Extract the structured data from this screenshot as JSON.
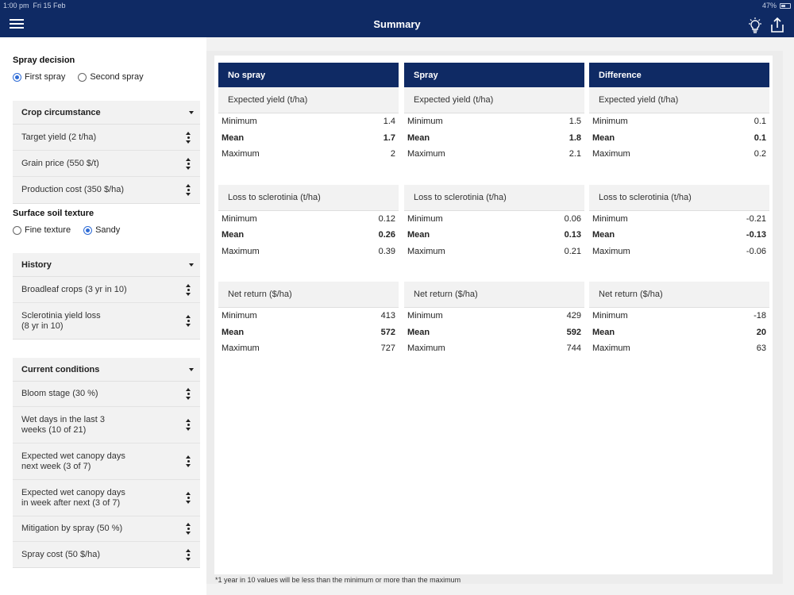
{
  "status_bar": {
    "time": "1:00 pm",
    "date": "Fri 15 Feb",
    "battery": "47%"
  },
  "header": {
    "title": "Summary"
  },
  "icons": {
    "menu": "hamburger-menu-icon",
    "tip": "lightbulb-icon",
    "share": "share-icon"
  },
  "colors": {
    "brand": "#0f2a64",
    "accent": "#2f6cd6"
  },
  "spray_decision": {
    "title": "Spray decision",
    "options": [
      "First spray",
      "Second spray"
    ],
    "selected": "First spray"
  },
  "crop": {
    "title": "Crop circumstance",
    "items": [
      "Target yield (2 t/ha)",
      "Grain price (550 $/t)",
      "Production cost (350 $/ha)"
    ]
  },
  "soil": {
    "title": "Surface soil texture",
    "options": [
      "Fine texture",
      "Sandy"
    ],
    "selected": "Sandy"
  },
  "history": {
    "title": "History",
    "items": [
      "Broadleaf crops (3 yr in 10)",
      "Sclerotinia yield loss\n(8 yr in 10)"
    ]
  },
  "conditions": {
    "title": "Current conditions",
    "items": [
      "Bloom stage (30 %)",
      "Wet days in the last 3\nweeks (10 of 21)",
      "Expected wet canopy days\nnext week (3 of 7)",
      "Expected wet canopy days\nin week after next (3 of 7)",
      "Mitigation by spray (50 %)",
      "Spray cost (50 $/ha)"
    ]
  },
  "summary": {
    "row_labels": [
      "Minimum",
      "Mean",
      "Maximum"
    ],
    "columns": [
      {
        "title": "No spray",
        "blocks": [
          {
            "title": "Expected yield (t/ha)",
            "values": [
              "1.4",
              "1.7",
              "2"
            ]
          },
          {
            "title": "Loss to sclerotinia (t/ha)",
            "values": [
              "0.12",
              "0.26",
              "0.39"
            ]
          },
          {
            "title": "Net return ($/ha)",
            "values": [
              "413",
              "572",
              "727"
            ]
          }
        ]
      },
      {
        "title": "Spray",
        "blocks": [
          {
            "title": "Expected yield (t/ha)",
            "values": [
              "1.5",
              "1.8",
              "2.1"
            ]
          },
          {
            "title": "Loss to sclerotinia (t/ha)",
            "values": [
              "0.06",
              "0.13",
              "0.21"
            ]
          },
          {
            "title": "Net return ($/ha)",
            "values": [
              "429",
              "592",
              "744"
            ]
          }
        ]
      },
      {
        "title": "Difference",
        "blocks": [
          {
            "title": "Expected yield (t/ha)",
            "values": [
              "0.1",
              "0.1",
              "0.2"
            ]
          },
          {
            "title": "Loss to sclerotinia (t/ha)",
            "values": [
              "-0.21",
              "-0.13",
              "-0.06"
            ]
          },
          {
            "title": "Net return ($/ha)",
            "values": [
              "-18",
              "20",
              "63"
            ]
          }
        ]
      }
    ]
  },
  "footnote": "*1 year in 10 values will be less than the minimum or more than the maximum"
}
